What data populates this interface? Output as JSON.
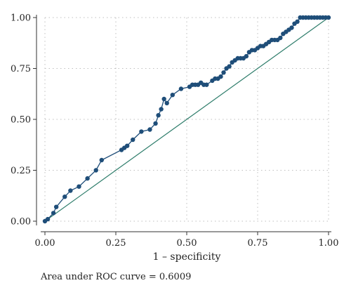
{
  "chart_data": {
    "type": "line",
    "title": "",
    "xlabel": "1 – specificity",
    "ylabel": "",
    "xlim": [
      0,
      1
    ],
    "ylim": [
      0,
      1
    ],
    "x_ticks": [
      "0.00",
      "0.25",
      "0.50",
      "0.75",
      "1.00"
    ],
    "y_ticks": [
      "0.00",
      "0.25",
      "0.50",
      "0.75",
      "1.00"
    ],
    "grid": true,
    "annotation": "Area under ROC curve = 0.6009",
    "colors": {
      "roc_curve": "#1f4e79",
      "reference_line": "#2e7d6b",
      "grid": "#bfbfbf",
      "axis": "#333333"
    },
    "series": [
      {
        "style": "line-with-markers",
        "points": [
          [
            0.0,
            0.0
          ],
          [
            0.01,
            0.01
          ],
          [
            0.03,
            0.04
          ],
          [
            0.04,
            0.07
          ],
          [
            0.07,
            0.12
          ],
          [
            0.09,
            0.15
          ],
          [
            0.12,
            0.17
          ],
          [
            0.15,
            0.21
          ],
          [
            0.18,
            0.25
          ],
          [
            0.2,
            0.3
          ],
          [
            0.27,
            0.35
          ],
          [
            0.28,
            0.36
          ],
          [
            0.29,
            0.37
          ],
          [
            0.31,
            0.4
          ],
          [
            0.34,
            0.44
          ],
          [
            0.37,
            0.45
          ],
          [
            0.39,
            0.48
          ],
          [
            0.4,
            0.52
          ],
          [
            0.41,
            0.55
          ],
          [
            0.42,
            0.6
          ],
          [
            0.43,
            0.58
          ],
          [
            0.45,
            0.62
          ],
          [
            0.48,
            0.65
          ],
          [
            0.51,
            0.66
          ],
          [
            0.52,
            0.67
          ],
          [
            0.53,
            0.67
          ],
          [
            0.54,
            0.67
          ],
          [
            0.55,
            0.68
          ],
          [
            0.56,
            0.67
          ],
          [
            0.57,
            0.67
          ],
          [
            0.59,
            0.69
          ],
          [
            0.6,
            0.7
          ],
          [
            0.61,
            0.7
          ],
          [
            0.62,
            0.71
          ],
          [
            0.63,
            0.73
          ],
          [
            0.64,
            0.75
          ],
          [
            0.65,
            0.76
          ],
          [
            0.66,
            0.78
          ],
          [
            0.67,
            0.79
          ],
          [
            0.68,
            0.8
          ],
          [
            0.69,
            0.8
          ],
          [
            0.7,
            0.8
          ],
          [
            0.71,
            0.81
          ],
          [
            0.72,
            0.83
          ],
          [
            0.73,
            0.84
          ],
          [
            0.74,
            0.84
          ],
          [
            0.75,
            0.85
          ],
          [
            0.76,
            0.86
          ],
          [
            0.77,
            0.86
          ],
          [
            0.78,
            0.87
          ],
          [
            0.79,
            0.88
          ],
          [
            0.8,
            0.89
          ],
          [
            0.81,
            0.89
          ],
          [
            0.82,
            0.89
          ],
          [
            0.83,
            0.9
          ],
          [
            0.84,
            0.92
          ],
          [
            0.85,
            0.93
          ],
          [
            0.86,
            0.94
          ],
          [
            0.87,
            0.95
          ],
          [
            0.88,
            0.97
          ],
          [
            0.89,
            0.98
          ],
          [
            0.9,
            1.0
          ],
          [
            0.91,
            1.0
          ],
          [
            0.92,
            1.0
          ],
          [
            0.93,
            1.0
          ],
          [
            0.94,
            1.0
          ],
          [
            0.95,
            1.0
          ],
          [
            0.96,
            1.0
          ],
          [
            0.97,
            1.0
          ],
          [
            0.98,
            1.0
          ],
          [
            0.99,
            1.0
          ],
          [
            1.0,
            1.0
          ]
        ]
      },
      {
        "style": "reference-line",
        "points": [
          [
            0.0,
            0.0
          ],
          [
            1.0,
            1.0
          ]
        ]
      }
    ]
  }
}
